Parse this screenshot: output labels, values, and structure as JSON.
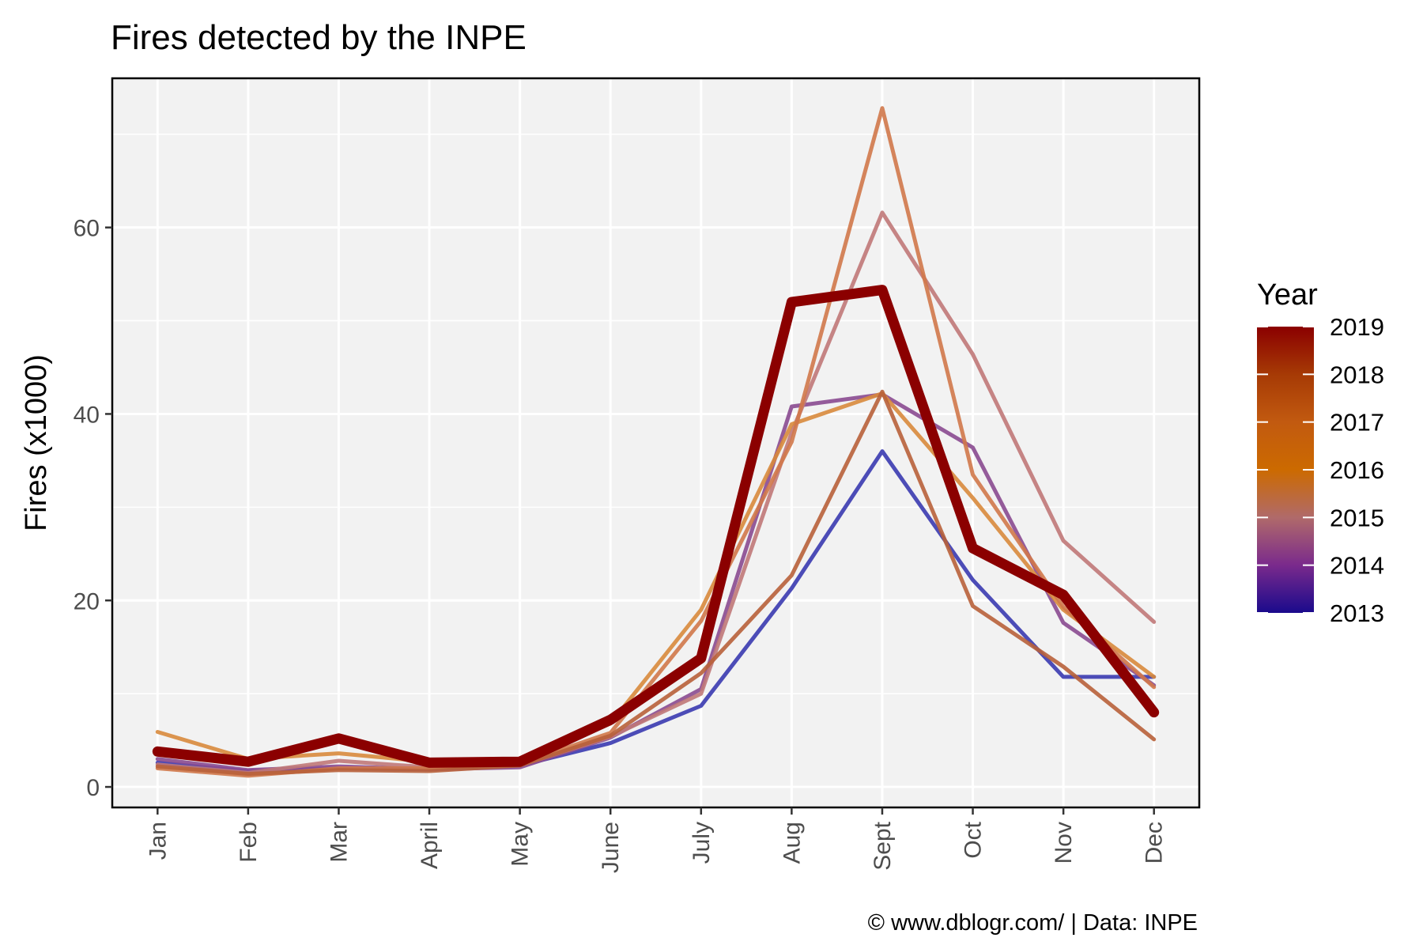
{
  "chart_data": {
    "type": "line",
    "title": "Fires detected by the INPE",
    "xlabel": "",
    "ylabel": "Fires (x1000)",
    "caption": "© www.dblogr.com/  |  Data: INPE",
    "categories": [
      "Jan",
      "Feb",
      "Mar",
      "April",
      "May",
      "June",
      "July",
      "Aug",
      "Sept",
      "Oct",
      "Nov",
      "Dec"
    ],
    "ylim": [
      -2.2,
      76
    ],
    "yticks": [
      0,
      20,
      40,
      60
    ],
    "grid": true,
    "legend": {
      "title": "Year",
      "placement": "right",
      "labels": [
        "2019",
        "2018",
        "2017",
        "2016",
        "2015",
        "2014",
        "2013"
      ],
      "gradient": [
        "#1a0a8c",
        "#7a2a8c",
        "#b06a6a",
        "#cc6a00",
        "#c25a10",
        "#a63a05",
        "#8b0000"
      ]
    },
    "series": [
      {
        "year": "2013",
        "color": "#3a3ab0",
        "width": 5,
        "values": [
          2.6,
          1.7,
          2.0,
          1.9,
          2.3,
          4.7,
          8.7,
          21.3,
          36.0,
          22.2,
          11.8,
          11.8
        ]
      },
      {
        "year": "2014",
        "color": "#8a4a90",
        "width": 5,
        "values": [
          3.0,
          1.8,
          2.2,
          1.9,
          2.1,
          5.3,
          10.5,
          40.8,
          42.1,
          36.4,
          17.6,
          10.9
        ]
      },
      {
        "year": "2015",
        "color": "#c07878",
        "width": 5,
        "values": [
          2.4,
          1.5,
          2.8,
          2.1,
          2.3,
          5.4,
          10.0,
          38.0,
          61.6,
          46.4,
          26.4,
          17.7
        ]
      },
      {
        "year": "2016",
        "color": "#d88a3c",
        "width": 5,
        "values": [
          5.9,
          3.0,
          3.6,
          2.7,
          2.9,
          6.8,
          19.0,
          38.9,
          42.2,
          31.0,
          19.0,
          11.8
        ]
      },
      {
        "year": "2017",
        "color": "#d0784a",
        "width": 5,
        "values": [
          2.0,
          1.2,
          2.0,
          2.0,
          2.5,
          5.8,
          17.8,
          37.0,
          72.8,
          33.5,
          19.3,
          10.7
        ]
      },
      {
        "year": "2018",
        "color": "#b8603a",
        "width": 5,
        "values": [
          2.2,
          1.4,
          1.8,
          1.7,
          2.3,
          5.5,
          12.2,
          22.7,
          42.4,
          19.4,
          12.9,
          5.1
        ]
      },
      {
        "year": "2019",
        "color": "#8b0000",
        "width": 13,
        "values": [
          3.8,
          2.7,
          5.2,
          2.6,
          2.7,
          7.2,
          13.8,
          52.0,
          53.3,
          25.6,
          20.6,
          8.0
        ]
      }
    ]
  }
}
